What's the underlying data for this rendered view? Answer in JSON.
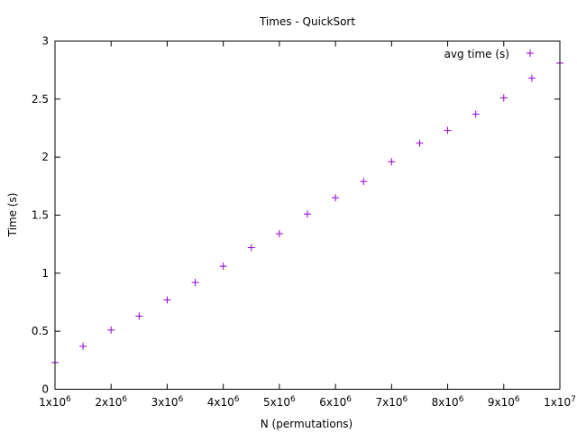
{
  "chart_data": {
    "type": "scatter",
    "title": "Times - QuickSort",
    "xlabel": "N (permutations)",
    "ylabel": "Time (s)",
    "xlim": [
      1000000,
      10000000
    ],
    "ylim": [
      0,
      3
    ],
    "x_ticks": [
      {
        "value": 1000000,
        "base": "1x10",
        "exp": "6"
      },
      {
        "value": 2000000,
        "base": "2x10",
        "exp": "6"
      },
      {
        "value": 3000000,
        "base": "3x10",
        "exp": "6"
      },
      {
        "value": 4000000,
        "base": "4x10",
        "exp": "6"
      },
      {
        "value": 5000000,
        "base": "5x10",
        "exp": "6"
      },
      {
        "value": 6000000,
        "base": "6x10",
        "exp": "6"
      },
      {
        "value": 7000000,
        "base": "7x10",
        "exp": "6"
      },
      {
        "value": 8000000,
        "base": "8x10",
        "exp": "6"
      },
      {
        "value": 9000000,
        "base": "9x10",
        "exp": "6"
      },
      {
        "value": 10000000,
        "base": "1x10",
        "exp": "7"
      }
    ],
    "y_ticks": [
      {
        "value": 0,
        "label": "0"
      },
      {
        "value": 0.5,
        "label": "0.5"
      },
      {
        "value": 1,
        "label": "1"
      },
      {
        "value": 1.5,
        "label": "1.5"
      },
      {
        "value": 2,
        "label": "2"
      },
      {
        "value": 2.5,
        "label": "2.5"
      },
      {
        "value": 3,
        "label": "3"
      }
    ],
    "grid": false,
    "legend_position": "top-right",
    "series": [
      {
        "name": "avg time (s)",
        "color": "#9400d3",
        "marker": "plus",
        "x": [
          1000000,
          1500000,
          2000000,
          2500000,
          3000000,
          3500000,
          4000000,
          4500000,
          5000000,
          5500000,
          6000000,
          6500000,
          7000000,
          7500000,
          8000000,
          8500000,
          9000000,
          9500000,
          10000000
        ],
        "y": [
          0.23,
          0.37,
          0.51,
          0.63,
          0.77,
          0.92,
          1.06,
          1.22,
          1.34,
          1.51,
          1.65,
          1.79,
          1.96,
          2.12,
          2.23,
          2.37,
          2.51,
          2.68,
          2.81
        ]
      }
    ]
  }
}
